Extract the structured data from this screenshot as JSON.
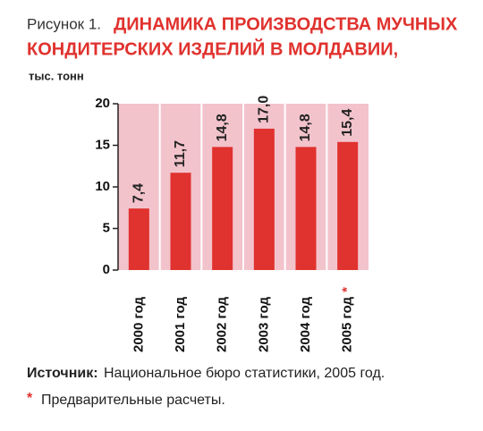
{
  "chart_data": {
    "type": "bar",
    "figure_label": "Рисунок 1.",
    "title": [
      "ДИНАМИКА ПРОИЗВОДСТВА МУЧНЫХ",
      "КОНДИТЕРСКИХ ИЗДЕЛИЙ В МОЛДАВИИ,"
    ],
    "y_label": "тыс. тонн",
    "categories": [
      "2000 год",
      "2001 год",
      "2002 год",
      "2003 год",
      "2004 год",
      "2005 год"
    ],
    "values": [
      7.4,
      11.7,
      14.8,
      17.0,
      14.8,
      15.4
    ],
    "value_labels": [
      "7,4",
      "11,7",
      "14,8",
      "17,0",
      "14,8",
      "15,4"
    ],
    "color": "#e0322e",
    "background": "#f3c3cc",
    "ylim": [
      0,
      20
    ],
    "yticks": [
      0,
      5,
      10,
      15,
      20
    ],
    "note_marker": "*",
    "marked_category": 5,
    "source_label": "Источник:",
    "source": "Национальное бюро статистики, 2005 год.",
    "note": "Предварительные расчеты."
  }
}
